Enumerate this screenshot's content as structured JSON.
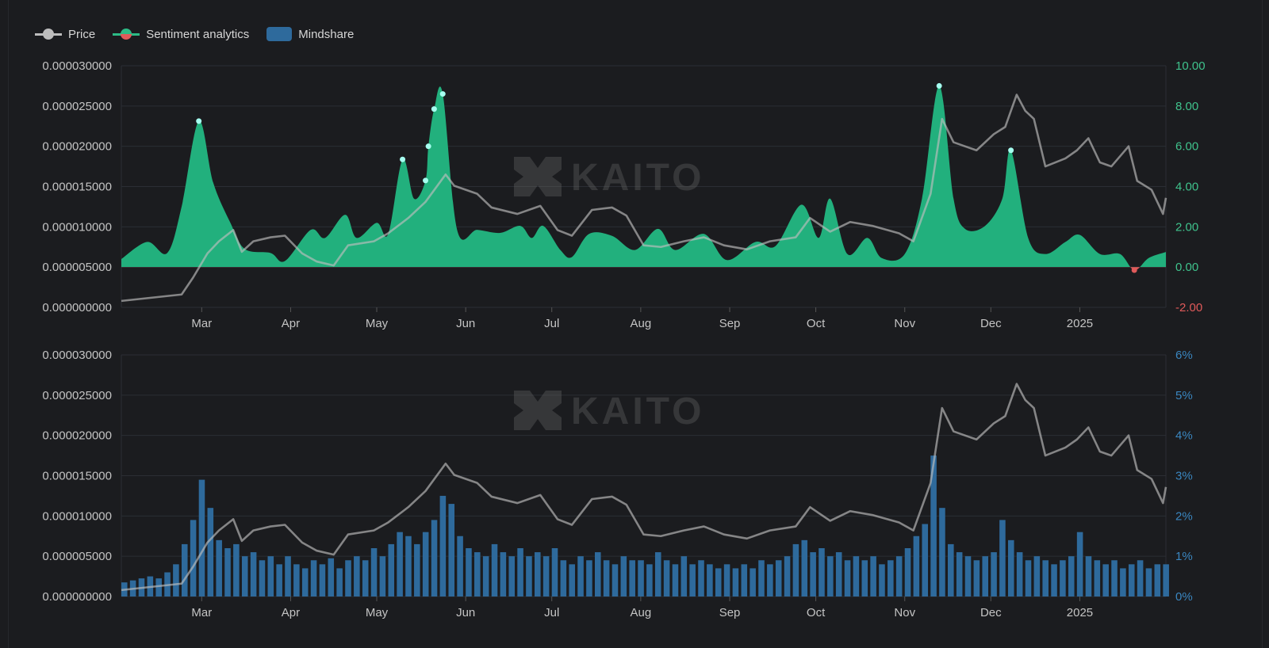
{
  "legend": {
    "price": "Price",
    "sentiment": "Sentiment analytics",
    "mindshare": "Mindshare"
  },
  "watermark": "KAITO",
  "colors": {
    "background": "#1b1c1f",
    "price": "#a8a8a8",
    "sentiment_positive": "#22b07d",
    "sentiment_negative": "#e05a5a",
    "marker": "#a6fff0",
    "mindshare": "#2e6a9c",
    "right_axis_top": "#3fc28c",
    "right_axis_bottom": "#3a86c0",
    "grid": "#2b2e34"
  },
  "chart_data": [
    {
      "type": "area",
      "title": "",
      "x_range": [
        "2024-02-02",
        "2025-01-31"
      ],
      "x_tick_labels": [
        [
          "2024-03-01",
          "Mar"
        ],
        [
          "2024-04-01",
          "Apr"
        ],
        [
          "2024-05-01",
          "May"
        ],
        [
          "2024-06-01",
          "Jun"
        ],
        [
          "2024-07-01",
          "Jul"
        ],
        [
          "2024-08-01",
          "Aug"
        ],
        [
          "2024-09-01",
          "Sep"
        ],
        [
          "2024-10-01",
          "Oct"
        ],
        [
          "2024-11-01",
          "Nov"
        ],
        [
          "2024-12-01",
          "Dec"
        ],
        [
          "2025-01-01",
          "2025"
        ]
      ],
      "left_axis": {
        "ylim": [
          0,
          3e-05
        ],
        "ticks": [
          "0.000000000",
          "0.000005000",
          "0.000010000",
          "0.000015000",
          "0.000020000",
          "0.000025000",
          "0.000030000"
        ]
      },
      "right_axis": {
        "ylim": [
          -2,
          10
        ],
        "ticks": [
          "-2.00",
          "0.00",
          "2.00",
          "4.00",
          "6.00",
          "8.00",
          "10.00"
        ]
      },
      "grid": true,
      "legend_position": "top-left",
      "series": [
        {
          "name": "Sentiment analytics",
          "axis": "right",
          "type": "area",
          "points": [
            [
              "2024-02-02",
              0.4
            ],
            [
              "2024-02-11",
              1.25
            ],
            [
              "2024-02-18",
              0.7
            ],
            [
              "2024-02-23",
              3.0
            ],
            [
              "2024-02-29",
              7.25
            ],
            [
              "2024-03-05",
              4.2
            ],
            [
              "2024-03-11",
              2.2
            ],
            [
              "2024-03-16",
              0.9
            ],
            [
              "2024-03-25",
              0.7
            ],
            [
              "2024-03-30",
              0.3
            ],
            [
              "2024-04-08",
              1.85
            ],
            [
              "2024-04-13",
              1.45
            ],
            [
              "2024-04-20",
              2.6
            ],
            [
              "2024-04-24",
              1.45
            ],
            [
              "2024-05-01",
              2.2
            ],
            [
              "2024-05-05",
              1.65
            ],
            [
              "2024-05-10",
              5.35
            ],
            [
              "2024-05-14",
              3.4
            ],
            [
              "2024-05-18",
              4.3
            ],
            [
              "2024-05-19",
              6.0
            ],
            [
              "2024-05-21",
              7.85
            ],
            [
              "2024-05-24",
              8.6
            ],
            [
              "2024-05-29",
              1.85
            ],
            [
              "2024-06-05",
              1.85
            ],
            [
              "2024-06-13",
              1.7
            ],
            [
              "2024-06-20",
              2.05
            ],
            [
              "2024-06-24",
              1.45
            ],
            [
              "2024-06-28",
              2.05
            ],
            [
              "2024-07-04",
              0.85
            ],
            [
              "2024-07-08",
              0.5
            ],
            [
              "2024-07-14",
              1.65
            ],
            [
              "2024-07-22",
              1.55
            ],
            [
              "2024-07-30",
              0.85
            ],
            [
              "2024-08-07",
              1.9
            ],
            [
              "2024-08-13",
              0.85
            ],
            [
              "2024-08-23",
              1.65
            ],
            [
              "2024-08-31",
              0.35
            ],
            [
              "2024-09-10",
              1.25
            ],
            [
              "2024-09-17",
              1.05
            ],
            [
              "2024-09-26",
              3.1
            ],
            [
              "2024-10-02",
              1.45
            ],
            [
              "2024-10-06",
              3.4
            ],
            [
              "2024-10-12",
              0.65
            ],
            [
              "2024-10-19",
              1.45
            ],
            [
              "2024-10-24",
              0.45
            ],
            [
              "2024-11-01",
              0.65
            ],
            [
              "2024-11-07",
              3.4
            ],
            [
              "2024-11-13",
              9.0
            ],
            [
              "2024-11-18",
              3.4
            ],
            [
              "2024-11-22",
              1.9
            ],
            [
              "2024-11-29",
              2.05
            ],
            [
              "2024-12-05",
              3.4
            ],
            [
              "2024-12-08",
              5.8
            ],
            [
              "2024-12-14",
              1.45
            ],
            [
              "2024-12-20",
              0.65
            ],
            [
              "2024-12-27",
              1.25
            ],
            [
              "2025-01-01",
              1.6
            ],
            [
              "2025-01-08",
              0.65
            ],
            [
              "2025-01-15",
              0.65
            ],
            [
              "2025-01-20",
              -0.15
            ],
            [
              "2025-01-25",
              0.45
            ],
            [
              "2025-01-31",
              0.75
            ]
          ],
          "markers": [
            "2024-02-29",
            "2024-05-10",
            "2024-05-18",
            "2024-05-19",
            "2024-05-21",
            "2024-05-24",
            "2024-11-13",
            "2024-12-08"
          ]
        },
        {
          "name": "Price",
          "axis": "left",
          "type": "line",
          "ref": "price"
        }
      ]
    },
    {
      "type": "bar",
      "title": "",
      "x_range": [
        "2024-02-02",
        "2025-01-31"
      ],
      "left_axis": {
        "ylim": [
          0,
          3e-05
        ],
        "ticks": [
          "0.000000000",
          "0.000005000",
          "0.000010000",
          "0.000015000",
          "0.000020000",
          "0.000025000",
          "0.000030000"
        ]
      },
      "right_axis": {
        "ylim": [
          0,
          6
        ],
        "ticks": [
          "0%",
          "1%",
          "2%",
          "3%",
          "4%",
          "5%",
          "6%"
        ]
      },
      "grid": true,
      "series": [
        {
          "name": "Mindshare",
          "axis": "right",
          "type": "bar",
          "unit": "%",
          "dates": [
            "2024-02-02",
            "2024-02-05",
            "2024-02-08",
            "2024-02-11",
            "2024-02-14",
            "2024-02-17",
            "2024-02-20",
            "2024-02-23",
            "2024-02-26",
            "2024-02-29",
            "2024-03-03",
            "2024-03-06",
            "2024-03-09",
            "2024-03-12",
            "2024-03-15",
            "2024-03-18",
            "2024-03-21",
            "2024-03-24",
            "2024-03-27",
            "2024-03-30",
            "2024-04-02",
            "2024-04-05",
            "2024-04-08",
            "2024-04-11",
            "2024-04-14",
            "2024-04-17",
            "2024-04-20",
            "2024-04-23",
            "2024-04-26",
            "2024-04-29",
            "2024-05-02",
            "2024-05-05",
            "2024-05-08",
            "2024-05-11",
            "2024-05-14",
            "2024-05-17",
            "2024-05-20",
            "2024-05-23",
            "2024-05-26",
            "2024-05-29",
            "2024-06-01",
            "2024-06-04",
            "2024-06-07",
            "2024-06-10",
            "2024-06-13",
            "2024-06-16",
            "2024-06-19",
            "2024-06-22",
            "2024-06-25",
            "2024-06-28",
            "2024-07-01",
            "2024-07-04",
            "2024-07-07",
            "2024-07-10",
            "2024-07-13",
            "2024-07-16",
            "2024-07-19",
            "2024-07-22",
            "2024-07-25",
            "2024-07-28",
            "2024-07-31",
            "2024-08-03",
            "2024-08-06",
            "2024-08-09",
            "2024-08-12",
            "2024-08-15",
            "2024-08-18",
            "2024-08-21",
            "2024-08-24",
            "2024-08-27",
            "2024-08-30",
            "2024-09-02",
            "2024-09-05",
            "2024-09-08",
            "2024-09-11",
            "2024-09-14",
            "2024-09-17",
            "2024-09-20",
            "2024-09-23",
            "2024-09-26",
            "2024-09-29",
            "2024-10-02",
            "2024-10-05",
            "2024-10-08",
            "2024-10-11",
            "2024-10-14",
            "2024-10-17",
            "2024-10-20",
            "2024-10-23",
            "2024-10-26",
            "2024-10-29",
            "2024-11-01",
            "2024-11-04",
            "2024-11-07",
            "2024-11-10",
            "2024-11-13",
            "2024-11-16",
            "2024-11-19",
            "2024-11-22",
            "2024-11-25",
            "2024-11-28",
            "2024-12-01",
            "2024-12-04",
            "2024-12-07",
            "2024-12-10",
            "2024-12-13",
            "2024-12-16",
            "2024-12-19",
            "2024-12-22",
            "2024-12-25",
            "2024-12-28",
            "2024-12-31",
            "2025-01-03",
            "2025-01-06",
            "2025-01-09",
            "2025-01-12",
            "2025-01-15",
            "2025-01-18",
            "2025-01-21",
            "2025-01-24",
            "2025-01-27",
            "2025-01-30"
          ],
          "values": [
            0.35,
            0.4,
            0.45,
            0.5,
            0.45,
            0.6,
            0.8,
            1.3,
            1.9,
            2.9,
            2.2,
            1.4,
            1.2,
            1.3,
            1.0,
            1.1,
            0.9,
            1.0,
            0.8,
            1.0,
            0.8,
            0.7,
            0.9,
            0.8,
            0.95,
            0.7,
            0.9,
            1.0,
            0.9,
            1.2,
            1.0,
            1.3,
            1.6,
            1.5,
            1.3,
            1.6,
            1.9,
            2.5,
            2.3,
            1.5,
            1.2,
            1.1,
            1.0,
            1.3,
            1.1,
            1.0,
            1.2,
            1.0,
            1.1,
            1.0,
            1.2,
            0.9,
            0.8,
            1.0,
            0.9,
            1.1,
            0.9,
            0.8,
            1.0,
            0.9,
            0.9,
            0.8,
            1.1,
            0.9,
            0.8,
            1.0,
            0.8,
            0.9,
            0.8,
            0.7,
            0.8,
            0.7,
            0.8,
            0.7,
            0.9,
            0.8,
            0.9,
            1.0,
            1.3,
            1.4,
            1.1,
            1.2,
            1.0,
            1.1,
            0.9,
            1.0,
            0.9,
            1.0,
            0.8,
            0.9,
            1.0,
            1.2,
            1.5,
            1.8,
            3.5,
            2.2,
            1.3,
            1.1,
            1.0,
            0.9,
            1.0,
            1.1,
            1.9,
            1.4,
            1.1,
            0.9,
            1.0,
            0.9,
            0.8,
            0.9,
            1.0,
            1.6,
            1.0,
            0.9,
            0.8,
            0.9,
            0.7,
            0.8,
            0.9,
            0.7,
            0.8,
            0.8
          ]
        },
        {
          "name": "Price",
          "axis": "left",
          "type": "line",
          "ref": "price"
        }
      ]
    }
  ],
  "price": [
    [
      "2024-02-02",
      8e-07
    ],
    [
      "2024-02-23",
      1.6e-06
    ],
    [
      "2024-02-27",
      3.7e-06
    ],
    [
      "2024-03-03",
      6.7e-06
    ],
    [
      "2024-03-07",
      8.2e-06
    ],
    [
      "2024-03-12",
      9.6e-06
    ],
    [
      "2024-03-15",
      6.9e-06
    ],
    [
      "2024-03-19",
      8.2e-06
    ],
    [
      "2024-03-25",
      8.7e-06
    ],
    [
      "2024-03-30",
      8.9e-06
    ],
    [
      "2024-04-05",
      6.7e-06
    ],
    [
      "2024-04-10",
      5.7e-06
    ],
    [
      "2024-04-16",
      5.2e-06
    ],
    [
      "2024-04-21",
      7.7e-06
    ],
    [
      "2024-04-30",
      8.2e-06
    ],
    [
      "2024-05-05",
      9.2e-06
    ],
    [
      "2024-05-12",
      1.11e-05
    ],
    [
      "2024-05-18",
      1.31e-05
    ],
    [
      "2024-05-25",
      1.65e-05
    ],
    [
      "2024-05-28",
      1.51e-05
    ],
    [
      "2024-06-05",
      1.41e-05
    ],
    [
      "2024-06-10",
      1.24e-05
    ],
    [
      "2024-06-19",
      1.16e-05
    ],
    [
      "2024-06-27",
      1.26e-05
    ],
    [
      "2024-07-03",
      9.6e-06
    ],
    [
      "2024-07-08",
      8.9e-06
    ],
    [
      "2024-07-15",
      1.21e-05
    ],
    [
      "2024-07-22",
      1.24e-05
    ],
    [
      "2024-07-27",
      1.14e-05
    ],
    [
      "2024-08-02",
      7.7e-06
    ],
    [
      "2024-08-08",
      7.5e-06
    ],
    [
      "2024-08-16",
      8.2e-06
    ],
    [
      "2024-08-23",
      8.7e-06
    ],
    [
      "2024-08-30",
      7.7e-06
    ],
    [
      "2024-09-07",
      7.2e-06
    ],
    [
      "2024-09-15",
      8.2e-06
    ],
    [
      "2024-09-24",
      8.7e-06
    ],
    [
      "2024-09-29",
      1.11e-05
    ],
    [
      "2024-10-06",
      9.4e-06
    ],
    [
      "2024-10-13",
      1.06e-05
    ],
    [
      "2024-10-21",
      1.01e-05
    ],
    [
      "2024-10-30",
      9.2e-06
    ],
    [
      "2024-11-04",
      8.2e-06
    ],
    [
      "2024-11-10",
      1.41e-05
    ],
    [
      "2024-11-14",
      2.34e-05
    ],
    [
      "2024-11-18",
      2.05e-05
    ],
    [
      "2024-11-22",
      2e-05
    ],
    [
      "2024-11-26",
      1.95e-05
    ],
    [
      "2024-12-02",
      2.15e-05
    ],
    [
      "2024-12-06",
      2.24e-05
    ],
    [
      "2024-12-10",
      2.64e-05
    ],
    [
      "2024-12-13",
      2.44e-05
    ],
    [
      "2024-12-16",
      2.34e-05
    ],
    [
      "2024-12-20",
      1.75e-05
    ],
    [
      "2024-12-27",
      1.85e-05
    ],
    [
      "2024-12-31",
      1.95e-05
    ],
    [
      "2025-01-04",
      2.1e-05
    ],
    [
      "2025-01-08",
      1.8e-05
    ],
    [
      "2025-01-12",
      1.75e-05
    ],
    [
      "2025-01-18",
      2e-05
    ],
    [
      "2025-01-21",
      1.57e-05
    ],
    [
      "2025-01-26",
      1.46e-05
    ],
    [
      "2025-01-30",
      1.16e-05
    ],
    [
      "2025-01-31",
      1.36e-05
    ]
  ]
}
